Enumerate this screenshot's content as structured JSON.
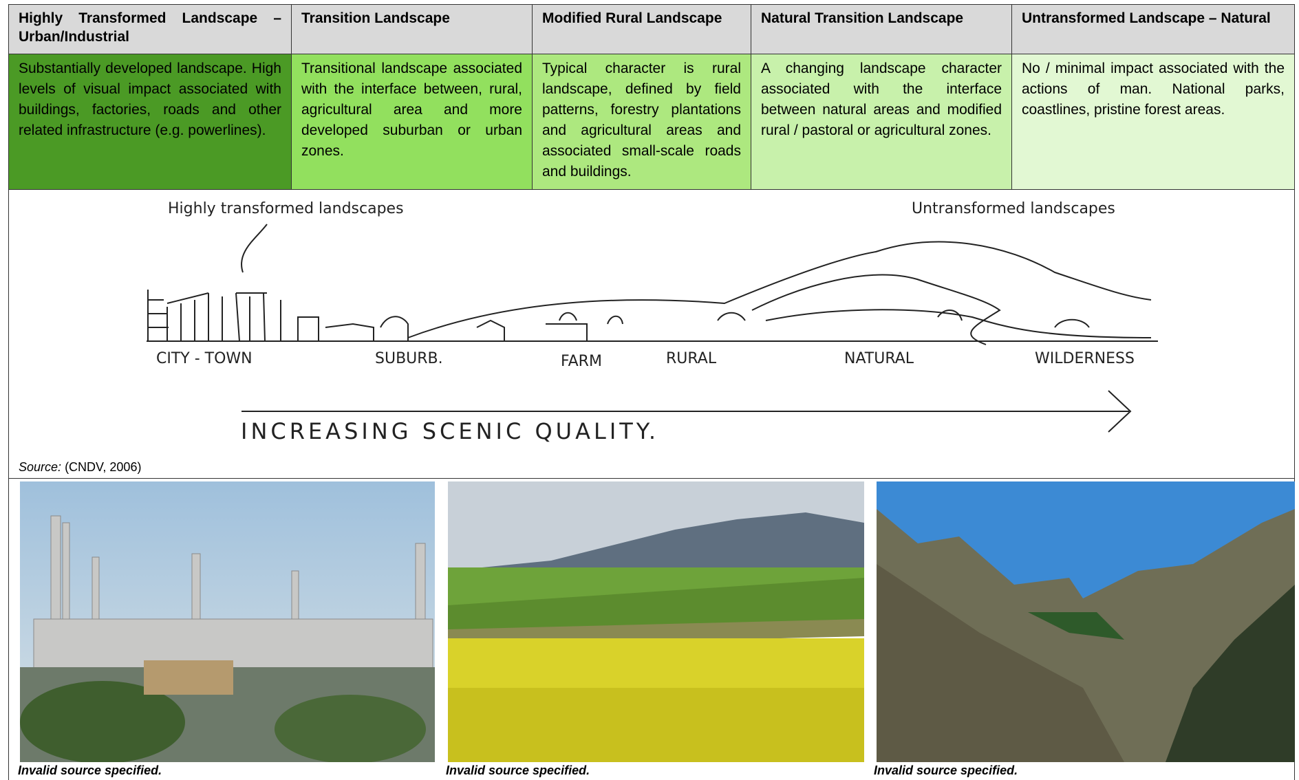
{
  "table": {
    "headers": [
      "Highly Transformed Landscape – Urban/Industrial",
      "Transition Landscape",
      "Modified Rural Landscape",
      "Natural Transition Landscape",
      "Untransformed Landscape – Natural"
    ],
    "descriptions": [
      "Substantially developed landscape. High levels of visual impact associated with buildings, factories, roads and other related infrastructure (e.g. powerlines).",
      "Transitional landscape associated with the interface between, rural, agricultural area and more developed suburban or urban zones.",
      "Typical character is rural landscape, defined by field patterns, forestry plantations and agricultural areas and associated small-scale roads and buildings.",
      "A changing landscape character associated with the interface between natural areas and modified rural / pastoral or agricultural zones.",
      "No / minimal impact associated with the actions of man. National parks, coastlines, pristine forest areas."
    ]
  },
  "sketch": {
    "left_label": "Highly transformed landscapes",
    "right_label": "Untransformed landscapes",
    "zones": [
      "CITY - TOWN",
      "SUBURB.",
      "FARM",
      "RURAL",
      "NATURAL",
      "WILDERNESS"
    ],
    "arrow_label": "INCREASING SCENIC QUALITY.",
    "source_label": "Source:",
    "source_text": "(CNDV, 2006)"
  },
  "photos": {
    "captions": [
      "Invalid source specified.",
      "Invalid source specified.",
      "Invalid source specified."
    ]
  }
}
